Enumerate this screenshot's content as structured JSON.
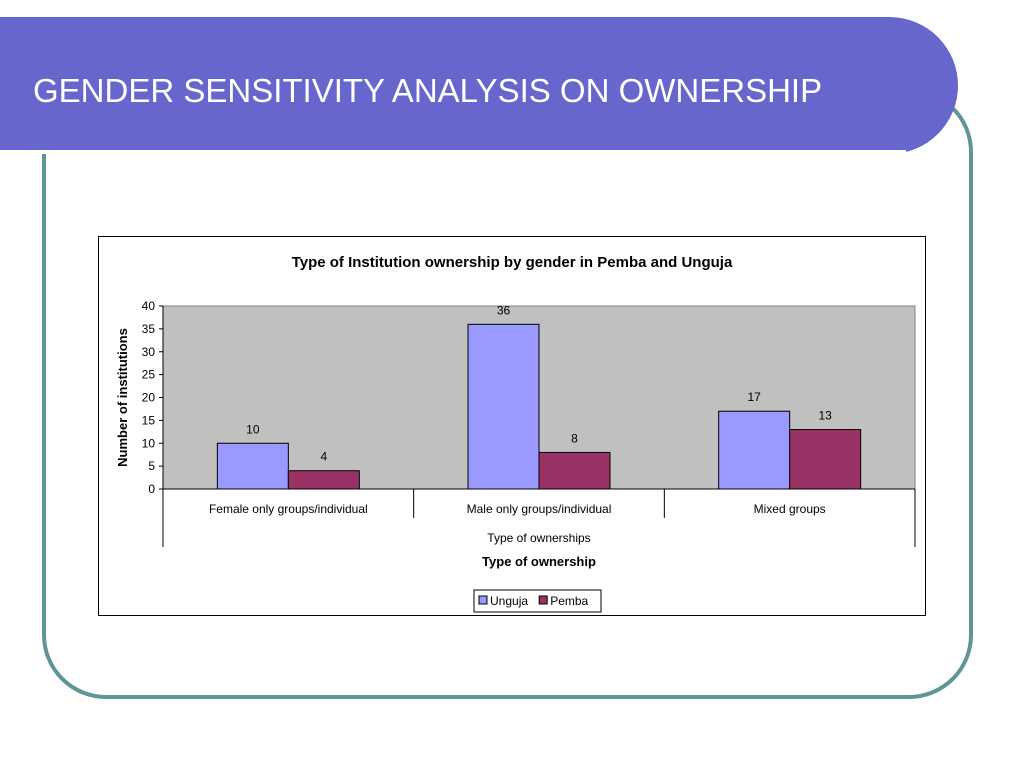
{
  "slide": {
    "title": "GENDER SENSITIVITY ANALYSIS ON OWNERSHIP"
  },
  "colors": {
    "title_bar": "#6666cc",
    "frame_border": "#5f9594",
    "plot_background": "#c0c0c0",
    "unguja": "#9999ff",
    "pemba": "#993366"
  },
  "chart_data": {
    "type": "bar",
    "title": "Type of Institution ownership by gender in Pemba and Unguja",
    "categories": [
      "Female only groups/individual",
      "Male only groups/individual",
      "Mixed groups"
    ],
    "category_group_label": "Type of ownerships",
    "xlabel": "Type of ownership",
    "ylabel": "Number of institutions",
    "ylim": [
      0,
      40
    ],
    "yticks": [
      0,
      5,
      10,
      15,
      20,
      25,
      30,
      35,
      40
    ],
    "series": [
      {
        "name": "Unguja",
        "values": [
          10,
          36,
          17
        ],
        "color": "#9999ff"
      },
      {
        "name": "Pemba",
        "values": [
          4,
          8,
          13
        ],
        "color": "#993366"
      }
    ],
    "data_labels": true,
    "grid": false,
    "legend": "bottom"
  }
}
